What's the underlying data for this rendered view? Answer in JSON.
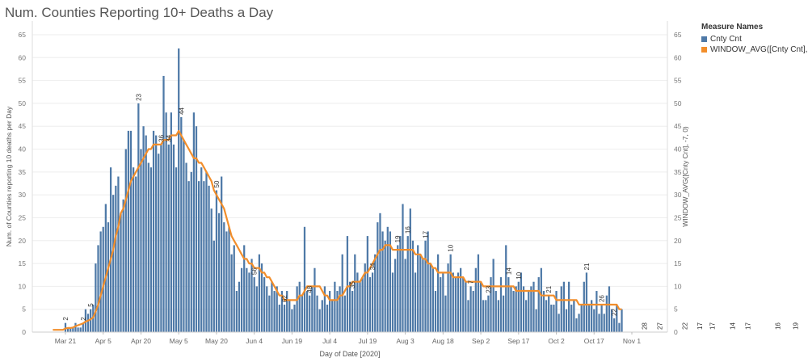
{
  "chart_data": {
    "type": "bar",
    "title": "Num. Counties Reporting 10+ Deaths a Day",
    "xlabel": "Day of Date [2020]",
    "ylabel": "Num. of Counties reporting 10 deaths per Day",
    "ylabel_right": "WINDOW_AVG([Cnty Cnt], -7, 0)",
    "ylim": [
      0,
      68
    ],
    "yticks": [
      0,
      5,
      10,
      15,
      20,
      25,
      30,
      35,
      40,
      45,
      50,
      55,
      60,
      65
    ],
    "x_start": "2020-03-16",
    "x_ticks": [
      {
        "label": "Mar 21",
        "date": "2020-03-21"
      },
      {
        "label": "Apr 5",
        "date": "2020-04-05"
      },
      {
        "label": "Apr 20",
        "date": "2020-04-20"
      },
      {
        "label": "May 5",
        "date": "2020-05-05"
      },
      {
        "label": "May 20",
        "date": "2020-05-20"
      },
      {
        "label": "Jun 4",
        "date": "2020-06-04"
      },
      {
        "label": "Jun 19",
        "date": "2020-06-19"
      },
      {
        "label": "Jul 4",
        "date": "2020-07-04"
      },
      {
        "label": "Jul 19",
        "date": "2020-07-19"
      },
      {
        "label": "Aug 3",
        "date": "2020-08-03"
      },
      {
        "label": "Aug 18",
        "date": "2020-08-18"
      },
      {
        "label": "Sep 2",
        "date": "2020-09-02"
      },
      {
        "label": "Sep 17",
        "date": "2020-09-17"
      },
      {
        "label": "Oct 2",
        "date": "2020-10-02"
      },
      {
        "label": "Oct 17",
        "date": "2020-10-17"
      },
      {
        "label": "Nov 1",
        "date": "2020-11-01"
      }
    ],
    "legend_title": "Measure Names",
    "legend_position": "top-right",
    "series": [
      {
        "name": "Cnty Cnt",
        "type": "bar",
        "color": "#4e79a7",
        "values": [
          0,
          0,
          0,
          0,
          0,
          2,
          1,
          1,
          1,
          2,
          1,
          1,
          2,
          5,
          4,
          5,
          6,
          15,
          19,
          22,
          23,
          28,
          24,
          36,
          30,
          32,
          34,
          26,
          29,
          40,
          44,
          44,
          36,
          34,
          50,
          40,
          45,
          43,
          37,
          36,
          44,
          43,
          39,
          41,
          56,
          48,
          41,
          48,
          41,
          36,
          62,
          47,
          42,
          37,
          33,
          35,
          48,
          45,
          33,
          36,
          33,
          35,
          32,
          27,
          20,
          31,
          26,
          34,
          24,
          22,
          23,
          17,
          19,
          9,
          11,
          14,
          19,
          14,
          13,
          16,
          12,
          10,
          17,
          15,
          12,
          10,
          8,
          11,
          9,
          10,
          6,
          9,
          6,
          9,
          7,
          5,
          6,
          10,
          11,
          8,
          23,
          9,
          8,
          10,
          14,
          8,
          5,
          7,
          10,
          6,
          9,
          7,
          11,
          9,
          10,
          17,
          8,
          21,
          11,
          9,
          17,
          13,
          11,
          12,
          15,
          21,
          12,
          13,
          17,
          24,
          26,
          22,
          20,
          23,
          22,
          13,
          16,
          19,
          21,
          28,
          16,
          21,
          27,
          20,
          13,
          19,
          17,
          16,
          20,
          22,
          15,
          14,
          9,
          17,
          12,
          13,
          8,
          15,
          17,
          13,
          12,
          13,
          14,
          12,
          11,
          7,
          10,
          9,
          14,
          17,
          11,
          7,
          7,
          8,
          12,
          16,
          9,
          7,
          12,
          8,
          19,
          12,
          10,
          9,
          10,
          11,
          13,
          10,
          7,
          9,
          10,
          11,
          5,
          12,
          14,
          9,
          7,
          8,
          6,
          6,
          9,
          4,
          10,
          11,
          5,
          11,
          6,
          7,
          3,
          4,
          6,
          11,
          13,
          6,
          7,
          5,
          9,
          4,
          6,
          4,
          8,
          10,
          5,
          3,
          6,
          2,
          5
        ]
      },
      {
        "name": "WINDOW_AVG([Cnty Cnt], -7, 0)",
        "type": "line",
        "color": "#f28e2b",
        "values": [
          0.5,
          0.5,
          0.5,
          0.5,
          0.5,
          0.8,
          0.9,
          0.9,
          1,
          1.3,
          1.5,
          1.7,
          1.9,
          2.3,
          2.5,
          2.8,
          3.2,
          4.5,
          6,
          8,
          10,
          12,
          14,
          16,
          18,
          21,
          23,
          26,
          27,
          29,
          31,
          33,
          34,
          35,
          36,
          37,
          38,
          39,
          40,
          40,
          41,
          41,
          41,
          41,
          42,
          42,
          42,
          43,
          43,
          43,
          44,
          43,
          42,
          41,
          40,
          39,
          38,
          38,
          37,
          37,
          36,
          35,
          34,
          33,
          31,
          30,
          29,
          28,
          27,
          25,
          23,
          21,
          20,
          19,
          18,
          17,
          16,
          16,
          15,
          15,
          14,
          14,
          14,
          13,
          13,
          12,
          12,
          11,
          10,
          9,
          8,
          8,
          7,
          7,
          7,
          7,
          7,
          7,
          8,
          8,
          9,
          10,
          10,
          10,
          10,
          10,
          10,
          9,
          8,
          8,
          7,
          7,
          7,
          7,
          8,
          8,
          9,
          10,
          10,
          11,
          11,
          11,
          11,
          12,
          13,
          13,
          14,
          15,
          16,
          17,
          18,
          18,
          19,
          19,
          19,
          18,
          18,
          18,
          18,
          18,
          18,
          18,
          18,
          18,
          17,
          17,
          17,
          16,
          16,
          15,
          15,
          14,
          14,
          13,
          13,
          13,
          13,
          13,
          13,
          12,
          12,
          12,
          12,
          12,
          11,
          11,
          11,
          11,
          11,
          11,
          11,
          10,
          10,
          10,
          10,
          10,
          10,
          10,
          10,
          10,
          10,
          10,
          10,
          10,
          9,
          9,
          9,
          9,
          9,
          9,
          9,
          9,
          9,
          9,
          8,
          8,
          8,
          8,
          8,
          8,
          7,
          7,
          7,
          7,
          7,
          7,
          7,
          7,
          7,
          6,
          6,
          6,
          6,
          6,
          6,
          6,
          6,
          6,
          6,
          6,
          6,
          6,
          6,
          6,
          6,
          5,
          5
        ]
      }
    ],
    "data_labels": [
      {
        "label": "2",
        "index": 5
      },
      {
        "label": "2",
        "index": 12
      },
      {
        "label": "5",
        "index": 15
      },
      {
        "label": "23",
        "index": 34
      },
      {
        "label": "36",
        "index": 43
      },
      {
        "label": "34",
        "index": 46
      },
      {
        "label": "44",
        "index": 51
      },
      {
        "label": "50",
        "index": 65
      },
      {
        "label": "56",
        "index": 80
      },
      {
        "label": "62",
        "index": 92
      },
      {
        "label": "48",
        "index": 102
      },
      {
        "label": "35",
        "index": 119
      },
      {
        "label": "34",
        "index": 127
      },
      {
        "label": "19",
        "index": 137
      },
      {
        "label": "16",
        "index": 141
      },
      {
        "label": "17",
        "index": 148
      },
      {
        "label": "10",
        "index": 158
      },
      {
        "label": "7",
        "index": 166
      },
      {
        "label": "23",
        "index": 173
      },
      {
        "label": "14",
        "index": 181
      },
      {
        "label": "10",
        "index": 185
      },
      {
        "label": "21",
        "index": 197
      },
      {
        "label": "21",
        "index": 212
      },
      {
        "label": "26",
        "index": 218
      },
      {
        "label": "22",
        "index": 223
      },
      {
        "label": "28",
        "index": 235
      },
      {
        "label": "27",
        "index": 241
      },
      {
        "label": "22",
        "index": 251
      },
      {
        "label": "17",
        "index": 257
      },
      {
        "label": "17",
        "index": 262
      },
      {
        "label": "14",
        "index": 270
      },
      {
        "label": "17",
        "index": 276
      },
      {
        "label": "16",
        "index": 288
      },
      {
        "label": "19",
        "index": 295
      },
      {
        "label": "13",
        "index": 301
      },
      {
        "label": "9",
        "index": 307
      },
      {
        "label": "14",
        "index": 313
      },
      {
        "label": "11",
        "index": 322
      },
      {
        "label": "11",
        "index": 327
      },
      {
        "label": "13",
        "index": 337
      },
      {
        "label": "7",
        "index": 342
      },
      {
        "label": "10",
        "index": 350
      },
      {
        "label": "5",
        "index": 355
      }
    ],
    "grid": true
  }
}
